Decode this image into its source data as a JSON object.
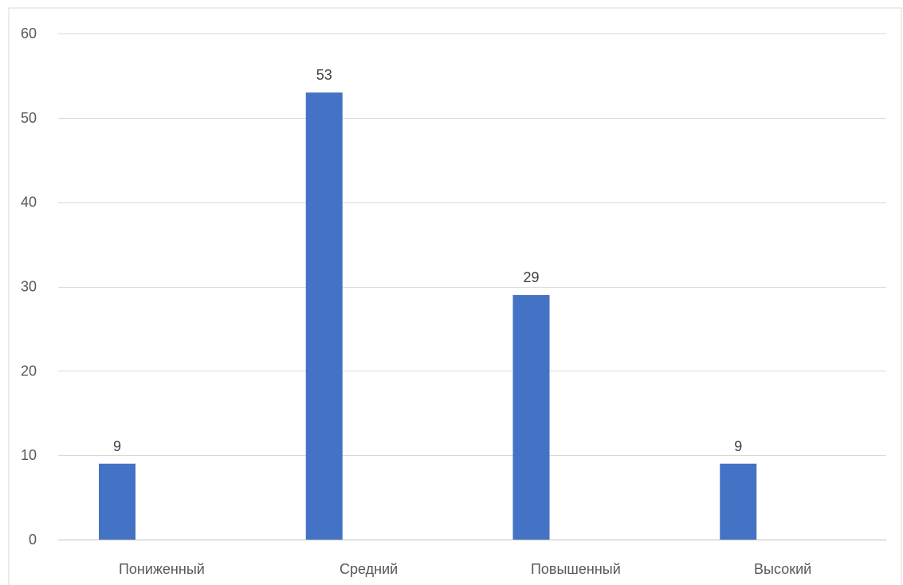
{
  "chart_data": {
    "type": "bar",
    "categories": [
      "Пониженный",
      "Средний",
      "Повышенный",
      "Высокий"
    ],
    "values": [
      9,
      53,
      29,
      9
    ],
    "data_labels": [
      "9",
      "53",
      "29",
      "9"
    ],
    "title": "",
    "xlabel": "",
    "ylabel": "",
    "ylim": [
      0,
      60
    ],
    "yticks": [
      0,
      10,
      20,
      30,
      40,
      50,
      60
    ],
    "ytick_labels": [
      "0",
      "10",
      "20",
      "30",
      "40",
      "50",
      "60"
    ],
    "grid": true,
    "legend": "none",
    "colors": {
      "bar": "#4472C4",
      "grid": "#D9D9D9",
      "axis": "#BFBFBF",
      "frame": "#D9D9D9",
      "text": "#595959"
    }
  }
}
